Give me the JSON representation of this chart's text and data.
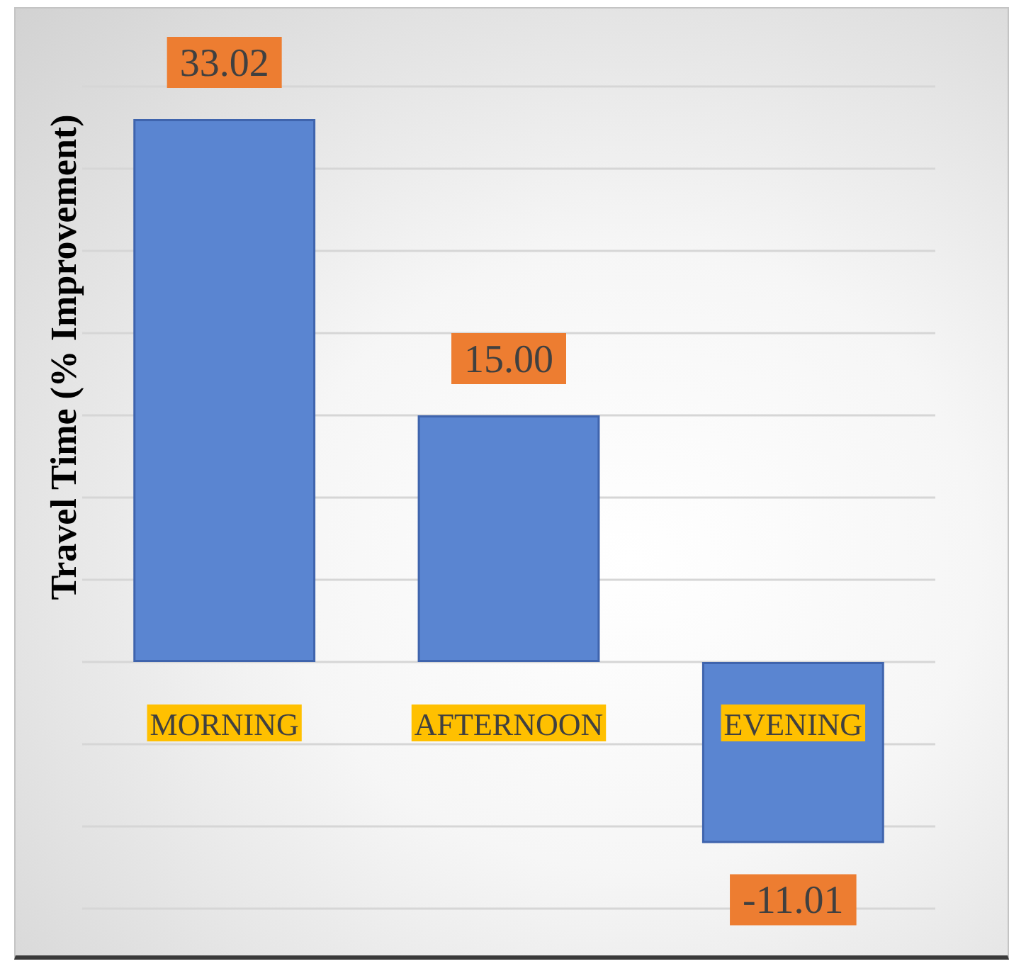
{
  "chart_data": {
    "type": "bar",
    "ylabel": "Travel Time (% Improvement)",
    "categories": [
      "MORNING",
      "AFTERNOON",
      "EVENING"
    ],
    "values": [
      33.02,
      15,
      -11.01
    ],
    "value_labels": [
      "33.02",
      "15.00",
      "-11.01"
    ],
    "color": "#5a85d1",
    "ylim": [
      -15,
      35
    ],
    "yticks": [
      {
        "value": -15,
        "label": null
      },
      {
        "value": -10,
        "label": null
      },
      {
        "value": -5,
        "label": null
      },
      {
        "value": 0,
        "label": null
      },
      {
        "value": 5,
        "label": null
      },
      {
        "value": 10,
        "label": null
      },
      {
        "value": 15,
        "label": null
      },
      {
        "value": 20,
        "label": null
      },
      {
        "value": 25,
        "label": null
      },
      {
        "value": 30,
        "label": null
      },
      {
        "value": 35,
        "label": null
      }
    ],
    "grid": "y",
    "tick_labels": "x"
  }
}
